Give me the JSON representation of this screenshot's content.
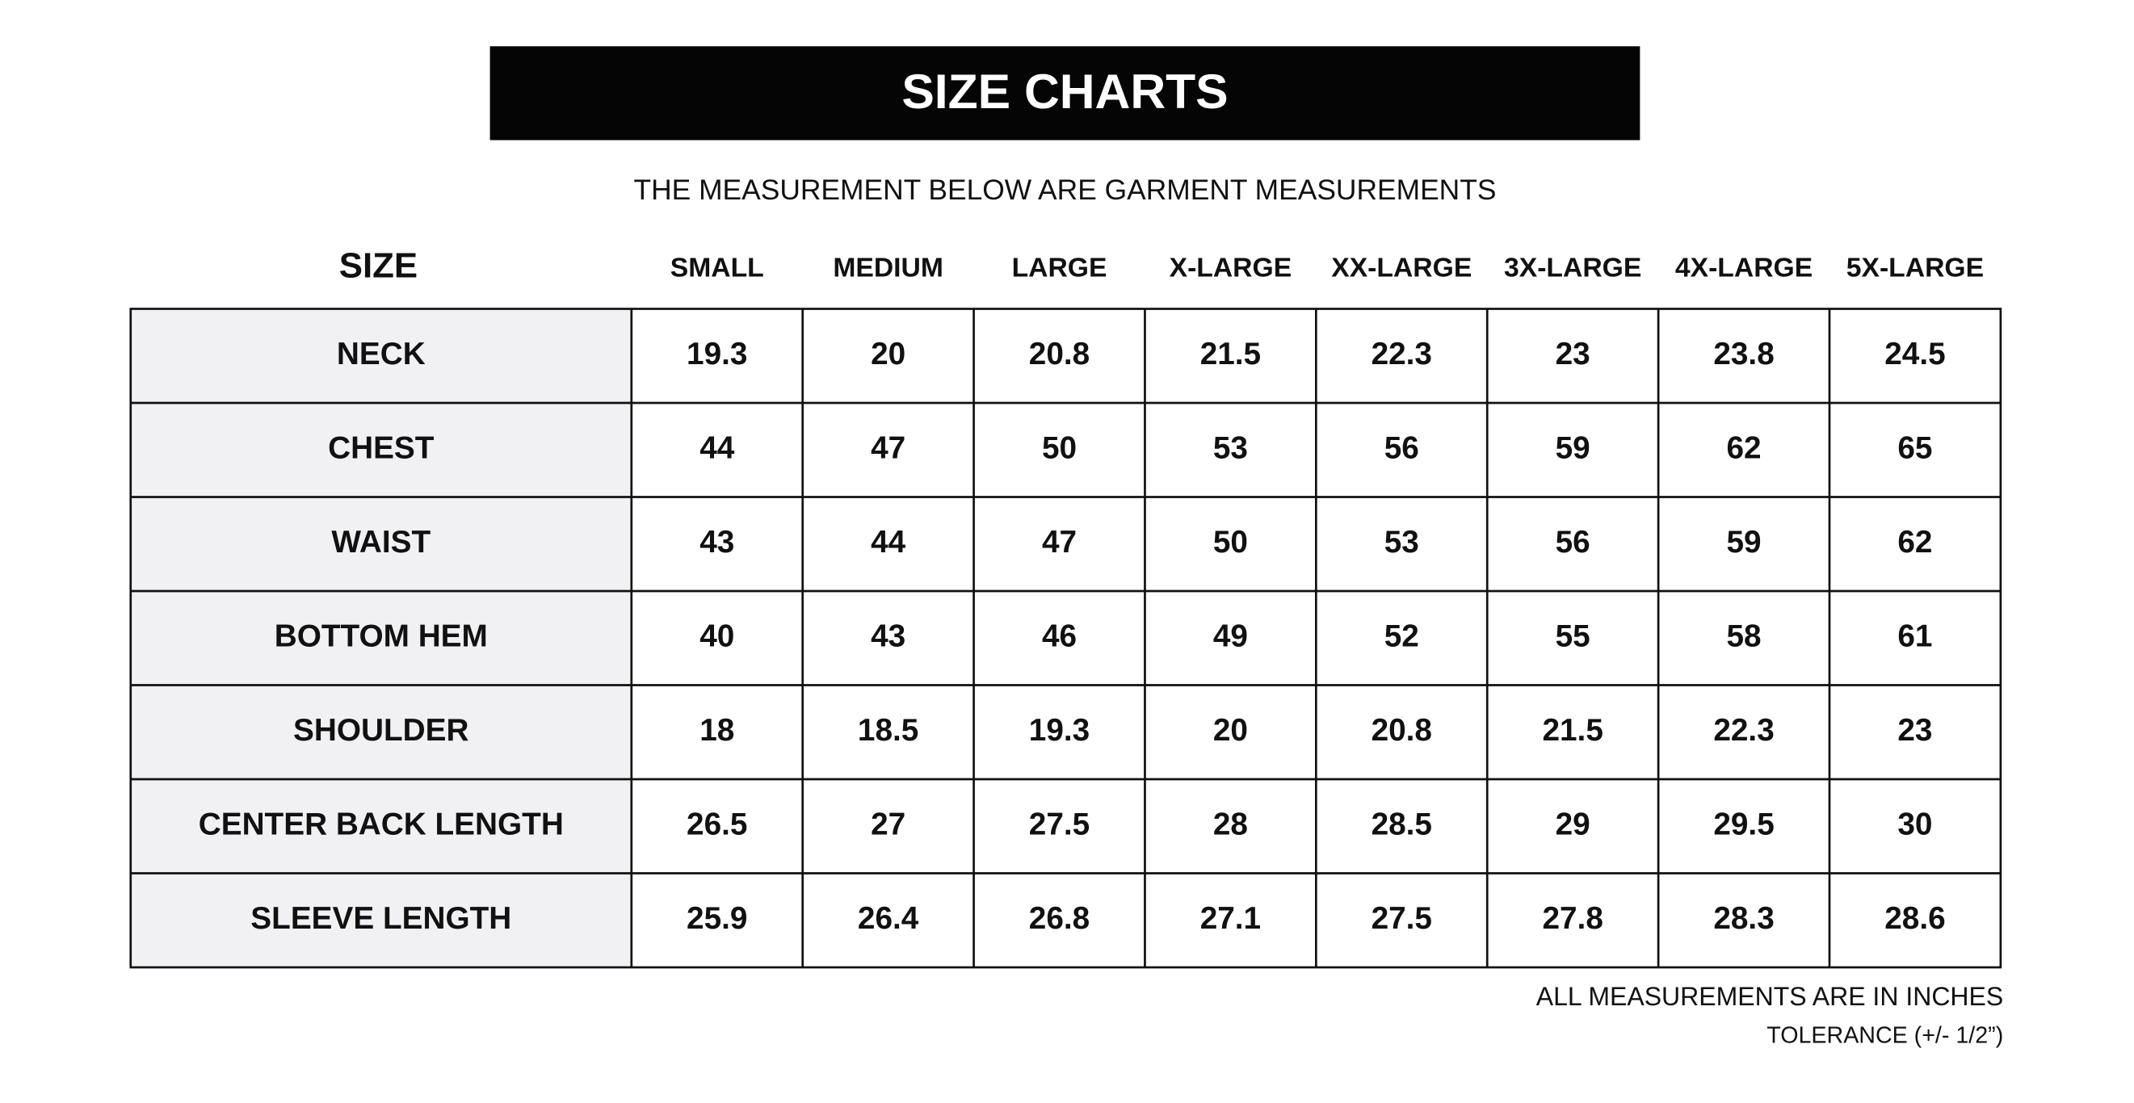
{
  "header": {
    "title": "SIZE CHARTS",
    "subtitle": "THE MEASUREMENT BELOW ARE GARMENT MEASUREMENTS"
  },
  "table": {
    "size_label": "SIZE",
    "columns": [
      "SMALL",
      "MEDIUM",
      "LARGE",
      "X-LARGE",
      "XX-LARGE",
      "3X-LARGE",
      "4X-LARGE",
      "5X-LARGE"
    ],
    "rows": [
      {
        "label": "NECK",
        "values": [
          19.3,
          20,
          20.8,
          21.5,
          22.3,
          23,
          23.8,
          24.5
        ]
      },
      {
        "label": "CHEST",
        "values": [
          44,
          47,
          50,
          53,
          56,
          59,
          62,
          65
        ]
      },
      {
        "label": "WAIST",
        "values": [
          43,
          44,
          47,
          50,
          53,
          56,
          59,
          62
        ]
      },
      {
        "label": "BOTTOM HEM",
        "values": [
          40,
          43,
          46,
          49,
          52,
          55,
          58,
          61
        ]
      },
      {
        "label": "SHOULDER",
        "values": [
          18,
          18.5,
          19.3,
          20,
          20.8,
          21.5,
          22.3,
          23
        ]
      },
      {
        "label": "CENTER BACK LENGTH",
        "values": [
          26.5,
          27,
          27.5,
          28,
          28.5,
          29,
          29.5,
          30
        ]
      },
      {
        "label": "SLEEVE LENGTH",
        "values": [
          25.9,
          26.4,
          26.8,
          27.1,
          27.5,
          27.8,
          28.3,
          28.6
        ]
      }
    ]
  },
  "footer": {
    "units": "ALL MEASUREMENTS ARE IN INCHES",
    "tolerance": "TOLERANCE (+/- 1/2”)"
  }
}
